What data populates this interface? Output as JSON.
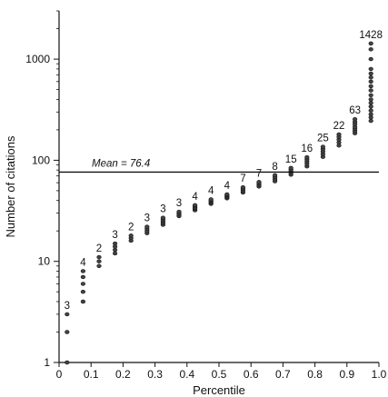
{
  "chart_data": {
    "type": "scatter",
    "title": "",
    "xlabel": "Percentile",
    "ylabel": "Number of citations",
    "x_scale": "linear",
    "y_scale": "log",
    "xlim": [
      0,
      1.0
    ],
    "ylim": [
      1,
      3000
    ],
    "x_ticks": [
      "0",
      "0.1",
      "0.2",
      "0.3",
      "0.4",
      "0.5",
      "0.6",
      "0.7",
      "0.8",
      "0.9",
      "1.0"
    ],
    "y_ticks": [
      "1",
      "10",
      "100",
      "1000"
    ],
    "grid": false,
    "mean": {
      "label": "Mean = 76.4",
      "value": 76.4
    },
    "groups": [
      {
        "x": 0.025,
        "label": "3",
        "values": [
          1,
          2,
          3
        ]
      },
      {
        "x": 0.075,
        "label": "4",
        "values": [
          4,
          5,
          6,
          7,
          8
        ]
      },
      {
        "x": 0.125,
        "label": "2",
        "values": [
          9,
          10,
          11
        ]
      },
      {
        "x": 0.175,
        "label": "3",
        "values": [
          12,
          13,
          14,
          15
        ]
      },
      {
        "x": 0.225,
        "label": "2",
        "values": [
          16,
          17,
          18
        ]
      },
      {
        "x": 0.275,
        "label": "3",
        "values": [
          19,
          20,
          21,
          22
        ]
      },
      {
        "x": 0.325,
        "label": "3",
        "values": [
          23,
          24,
          25,
          26,
          27
        ]
      },
      {
        "x": 0.375,
        "label": "3",
        "values": [
          28,
          29,
          30,
          31
        ]
      },
      {
        "x": 0.425,
        "label": "4",
        "values": [
          32,
          33,
          34,
          35,
          36
        ]
      },
      {
        "x": 0.475,
        "label": "4",
        "values": [
          37,
          38,
          39,
          40,
          41
        ]
      },
      {
        "x": 0.525,
        "label": "4",
        "values": [
          42,
          43,
          44,
          45,
          46
        ]
      },
      {
        "x": 0.575,
        "label": "7",
        "values": [
          48,
          50,
          52,
          54
        ]
      },
      {
        "x": 0.625,
        "label": "7",
        "values": [
          55,
          57,
          59,
          61
        ]
      },
      {
        "x": 0.675,
        "label": "8",
        "values": [
          62,
          65,
          68,
          71
        ]
      },
      {
        "x": 0.725,
        "label": "15",
        "values": [
          72,
          75,
          78,
          81,
          84
        ]
      },
      {
        "x": 0.775,
        "label": "16",
        "values": [
          87,
          92,
          97,
          102,
          107
        ]
      },
      {
        "x": 0.825,
        "label": "25",
        "values": [
          108,
          115,
          122,
          129,
          136
        ]
      },
      {
        "x": 0.875,
        "label": "22",
        "values": [
          140,
          150,
          160,
          170,
          180
        ]
      },
      {
        "x": 0.925,
        "label": "63",
        "values": [
          185,
          195,
          205,
          215,
          228,
          240,
          255
        ]
      },
      {
        "x": 0.975,
        "label": "1428",
        "values": [
          245,
          265,
          285,
          310,
          340,
          370,
          400,
          440,
          490,
          540,
          600,
          660,
          720,
          800,
          1000,
          1250,
          1428
        ]
      }
    ]
  }
}
